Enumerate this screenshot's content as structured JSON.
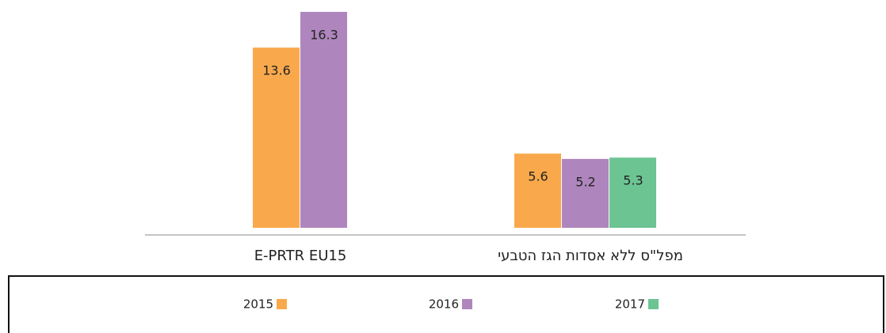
{
  "chart_data": {
    "type": "bar",
    "categories": [
      "E-PRTR EU15",
      "מפל\"ס ללא אסדות הגז הטבעי"
    ],
    "series": [
      {
        "name": "2015",
        "color": "#f9a94b",
        "values": [
          13.6,
          5.6
        ]
      },
      {
        "name": "2016",
        "color": "#ae86bd",
        "values": [
          16.3,
          5.2
        ]
      },
      {
        "name": "2017",
        "color": "#6cc493",
        "values": [
          null,
          5.3
        ]
      }
    ]
  }
}
